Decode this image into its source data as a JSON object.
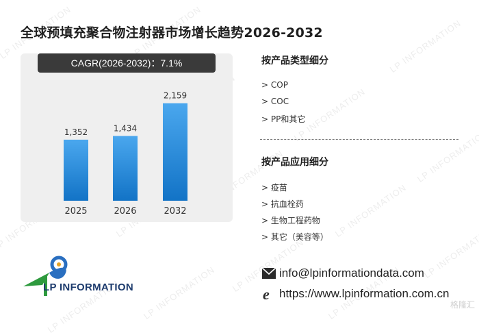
{
  "title": "全球预填充聚合物注射器市场增长趋势2026-2032",
  "cagr_label": "CAGR(2026-2032)：7.1%",
  "chart_data": {
    "type": "bar",
    "categories": [
      "2025",
      "2026",
      "2032"
    ],
    "values": [
      1352,
      1434,
      2159
    ],
    "value_labels": [
      "1,352",
      "1,434",
      "2,159"
    ],
    "title": "",
    "xlabel": "",
    "ylabel": "",
    "ylim": [
      0,
      2200
    ],
    "grid": false,
    "bar_color_top": "#4aa7ee",
    "bar_color_bottom": "#1273c6"
  },
  "product_type": {
    "heading": "按产品类型细分",
    "items": [
      "> COP",
      "> COC",
      "> PP和其它"
    ]
  },
  "application": {
    "heading": "按产品应用细分",
    "items": [
      "> 疫苗",
      "> 抗血栓药",
      "> 生物工程药物",
      "> 其它（美容等）"
    ]
  },
  "contact": {
    "email": "info@lpinformationdata.com",
    "website": "https://www.lpinformation.com.cn"
  },
  "logo_text": "LP INFORMATION",
  "watermark_text": "LP INFORMATION",
  "badge_text": "格隆汇"
}
